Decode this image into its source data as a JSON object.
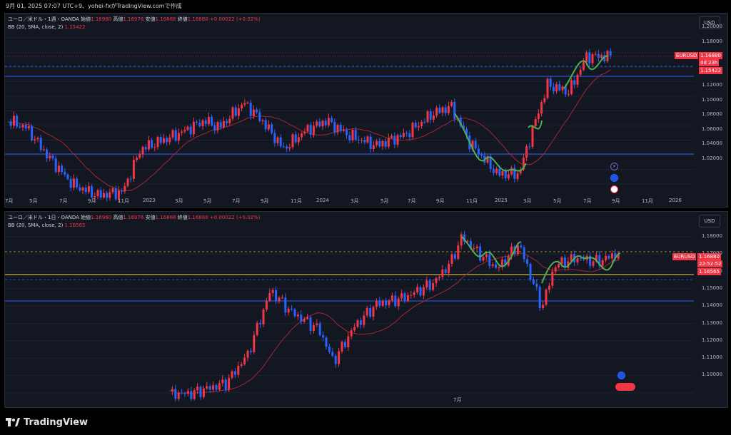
{
  "header": {
    "text": "9月 01, 2025 07:07 UTC+9、yohei-fxがTradingView.comで作成"
  },
  "colors": {
    "bg": "#131722",
    "up": "#f23645",
    "down": "#2962ff",
    "bb_basis": "#b22833",
    "wave": "#4caf50",
    "level_blue": "#2962ff",
    "level_yellow": "#c9b13f"
  },
  "top": {
    "symbol": "ユーロ／米ドル・1週・OANDA",
    "o_label": "始値",
    "o": "1.16960",
    "h_label": "高値",
    "h": "1.16976",
    "l_label": "安値",
    "l": "1.16868",
    "c_label": "終値",
    "c": "1.16880",
    "chg": "+0.00022 (+0.02%)",
    "bb_label": "BB (20, SMA, close, 2)",
    "bb_value": "1.15422",
    "currency": "USD",
    "ticker": "EURUSD",
    "price": "1.16880",
    "countdown": "4d 23h",
    "bb_tag": "1.15422",
    "price_scale": [
      "1.20000",
      "1.18000",
      "1.16000",
      "1.14000",
      "1.12000",
      "1.10000",
      "1.08000",
      "1.06000",
      "1.04000",
      "1.02000"
    ],
    "time_scale": [
      "7月",
      "5月",
      "7月",
      "9月",
      "11月",
      "2023",
      "3月",
      "5月",
      "7月",
      "9月",
      "11月",
      "2024",
      "3月",
      "5月",
      "7月",
      "9月",
      "11月",
      "2025",
      "3月",
      "5月",
      "7月",
      "9月",
      "11月",
      "2026"
    ]
  },
  "bottom": {
    "symbol": "ユーロ／米ドル・1日・OANDA",
    "o_label": "始値",
    "o": "1.16960",
    "h_label": "高値",
    "h": "1.16976",
    "l_label": "安値",
    "l": "1.16868",
    "c_label": "終値",
    "c": "1.16880",
    "chg": "+0.00022 (+0.02%)",
    "bb_label": "BB (20, SMA, close, 2)",
    "bb_value": "1.16565",
    "currency": "USD",
    "ticker": "EURUSD",
    "price": "1.16880",
    "countdown": "22:52:52",
    "bb_tag": "1.16565",
    "price_scale": [
      "1.18000",
      "1.17000",
      "1.16000",
      "1.15000",
      "1.14000",
      "1.13000",
      "1.12000",
      "1.11000",
      "1.10000"
    ],
    "time_scale": [
      "7月"
    ]
  },
  "footer": {
    "brand": "TradingView"
  }
}
